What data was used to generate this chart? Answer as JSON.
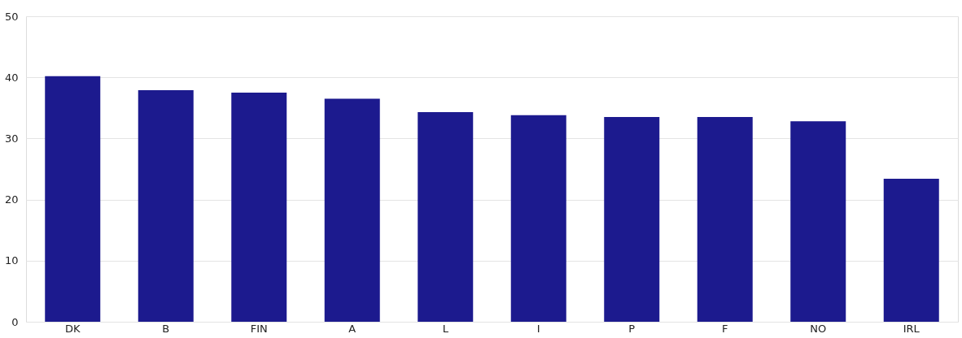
{
  "chart_data": {
    "type": "bar",
    "categories": [
      "DK",
      "B",
      "FIN",
      "A",
      "L",
      "I",
      "P",
      "F",
      "NO",
      "IRL"
    ],
    "values": [
      40.2,
      37.9,
      37.5,
      36.5,
      34.3,
      33.8,
      33.5,
      33.5,
      32.8,
      23.4
    ],
    "color": "#1c1a8e",
    "ylim": [
      0,
      50
    ],
    "yticks": [
      0,
      10,
      20,
      30,
      40,
      50
    ],
    "grid": "y"
  }
}
